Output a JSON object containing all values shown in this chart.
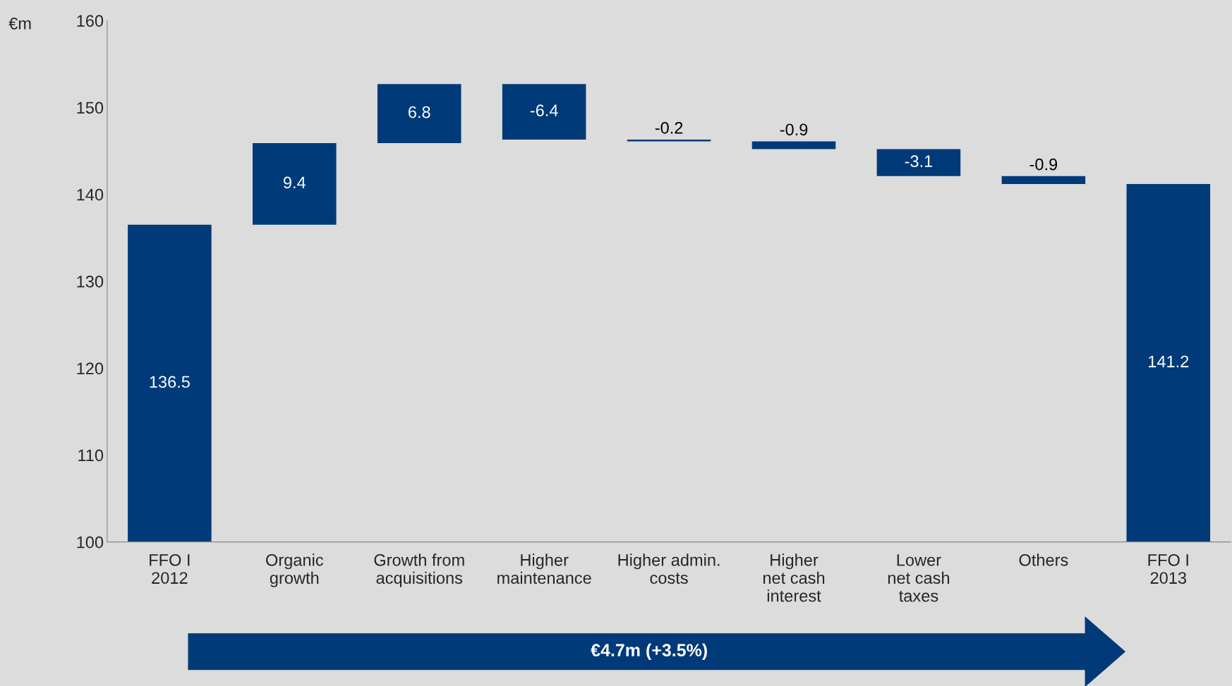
{
  "chart_data": {
    "type": "bar",
    "ylabel": "€m",
    "categories": [
      "FFO I\n2012",
      "Organic\ngrowth",
      "Growth from\nacquisitions",
      "Higher\nmaintenance",
      "Higher admin.\ncosts",
      "Higher\nnet cash\ninterest",
      "Lower\nnet cash\ntaxes",
      "Others",
      "FFO I\n2013"
    ],
    "values": [
      136.5,
      9.4,
      6.8,
      -6.4,
      -0.2,
      -0.9,
      -3.1,
      -0.9,
      141.2
    ],
    "base": [
      0,
      136.5,
      145.9,
      152.7,
      146.3,
      146.1,
      145.2,
      142.1,
      0
    ],
    "color": "#003a78",
    "data_labels": true,
    "ylim": [
      100,
      160
    ],
    "yticks": [
      100,
      110,
      120,
      130,
      140,
      150,
      160
    ],
    "grid": false,
    "annotations": [
      "€4.7m (+3.5%)"
    ]
  }
}
